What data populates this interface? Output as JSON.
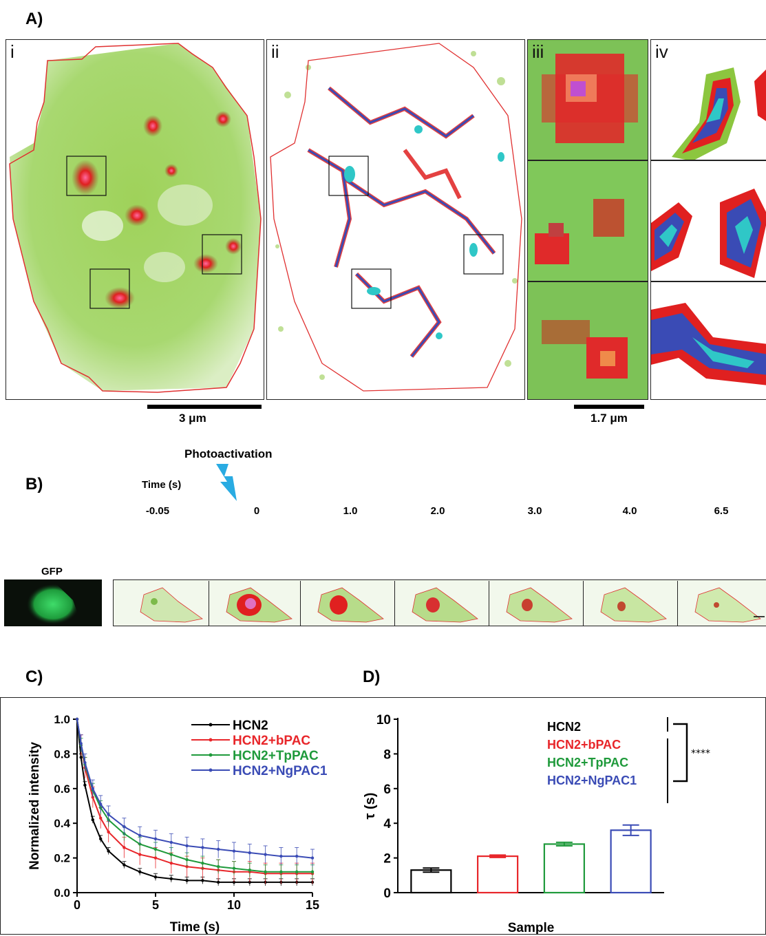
{
  "panel_a": {
    "letter": "A)",
    "sub_labels": [
      "i",
      "ii",
      "iii",
      "iv"
    ],
    "scale_bar_1": "3 μm",
    "scale_bar_2": "1.7 μm"
  },
  "panel_b": {
    "letter": "B)",
    "gfp_label": "GFP",
    "photoactivation_label": "Photoactivation",
    "time_label": "Time (s)",
    "times": [
      "-0.05",
      "0",
      "1.0",
      "2.0",
      "3.0",
      "4.0",
      "6.5"
    ]
  },
  "panel_c": {
    "letter": "C)"
  },
  "panel_d": {
    "letter": "D)",
    "significance": "****"
  },
  "colors": {
    "hcn2": "#000000",
    "bpac": "#e8262a",
    "tppac": "#1f9a3b",
    "ngpac1": "#3a4bb5",
    "cell_green": "#8cc63f",
    "hotspot_red": "#e02020",
    "mask_outline": "#e03030"
  },
  "chart_data": [
    {
      "type": "line",
      "panel": "C",
      "xlabel": "Time (s)",
      "ylabel": "Normalized intensity",
      "xlim": [
        0,
        15
      ],
      "ylim": [
        0,
        1.0
      ],
      "xticks": [
        0,
        5,
        10,
        15
      ],
      "yticks": [
        0.0,
        0.2,
        0.4,
        0.6,
        0.8,
        1.0
      ],
      "legend_position": "top-right",
      "x": [
        0,
        0.25,
        0.5,
        1,
        1.5,
        2,
        3,
        4,
        5,
        6,
        7,
        8,
        9,
        10,
        11,
        12,
        13,
        14,
        15
      ],
      "series": [
        {
          "name": "HCN2",
          "color": "#000000",
          "error": 0.02,
          "values": [
            1.0,
            0.78,
            0.62,
            0.42,
            0.31,
            0.24,
            0.16,
            0.12,
            0.09,
            0.08,
            0.07,
            0.07,
            0.06,
            0.06,
            0.06,
            0.06,
            0.06,
            0.06,
            0.06
          ]
        },
        {
          "name": "HCN2+bPAC",
          "color": "#e8262a",
          "error": 0.06,
          "values": [
            1.0,
            0.85,
            0.72,
            0.55,
            0.43,
            0.35,
            0.26,
            0.22,
            0.2,
            0.17,
            0.15,
            0.14,
            0.13,
            0.12,
            0.12,
            0.11,
            0.11,
            0.11,
            0.11
          ]
        },
        {
          "name": "HCN2+TpPAC",
          "color": "#1f9a3b",
          "error": 0.04,
          "values": [
            1.0,
            0.85,
            0.74,
            0.59,
            0.49,
            0.42,
            0.34,
            0.28,
            0.25,
            0.22,
            0.19,
            0.17,
            0.15,
            0.14,
            0.13,
            0.12,
            0.12,
            0.12,
            0.12
          ]
        },
        {
          "name": "HCN2+NgPAC1",
          "color": "#3a4bb5",
          "error": 0.05,
          "values": [
            1.0,
            0.86,
            0.75,
            0.6,
            0.51,
            0.45,
            0.38,
            0.33,
            0.31,
            0.29,
            0.27,
            0.26,
            0.25,
            0.24,
            0.23,
            0.22,
            0.21,
            0.21,
            0.2
          ]
        }
      ]
    },
    {
      "type": "bar",
      "panel": "D",
      "xlabel": "Sample",
      "ylabel": "τ (s)",
      "ylim": [
        0,
        10
      ],
      "yticks": [
        0,
        2,
        4,
        6,
        8,
        10
      ],
      "categories": [
        "HCN2",
        "HCN2+bPAC",
        "HCN2+TpPAC",
        "HCN2+NgPAC1"
      ],
      "values": [
        1.3,
        2.1,
        2.8,
        3.6
      ],
      "errors": [
        0.12,
        0.07,
        0.1,
        0.3
      ],
      "colors": [
        "#000000",
        "#e8262a",
        "#1f9a3b",
        "#3a4bb5"
      ]
    }
  ]
}
